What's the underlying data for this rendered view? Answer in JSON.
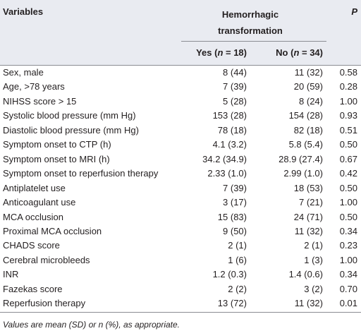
{
  "table": {
    "header": {
      "variables": "Variables",
      "group": "Hemorrhagic transformation",
      "yes": {
        "prefix": "Yes (",
        "italic": "n",
        "suffix": " = 18)"
      },
      "no": {
        "prefix": "No (",
        "italic": "n",
        "suffix": " = 34)"
      },
      "p": "P"
    },
    "rows": [
      [
        "Sex, male",
        "8 (44)",
        "11 (32)",
        "0.58"
      ],
      [
        "Age, >78 years",
        "7 (39)",
        "20 (59)",
        "0.28"
      ],
      [
        "NIHSS score > 15",
        "5 (28)",
        "8 (24)",
        "1.00"
      ],
      [
        "Systolic blood pressure (mm Hg)",
        "153 (28)",
        "154 (28)",
        "0.93"
      ],
      [
        "Diastolic blood pressure (mm Hg)",
        "78 (18)",
        "82 (18)",
        "0.51"
      ],
      [
        "Symptom onset to CTP (h)",
        "4.1 (3.2)",
        "5.8 (5.4)",
        "0.50"
      ],
      [
        "Symptom onset to MRI (h)",
        "34.2 (34.9)",
        "28.9 (27.4)",
        "0.67"
      ],
      [
        "Symptom onset to reperfusion therapy",
        "2.33 (1.0)",
        "2.99 (1.0)",
        "0.42"
      ],
      [
        "Antiplatelet use",
        "7 (39)",
        "18 (53)",
        "0.50"
      ],
      [
        "Anticoagulant use",
        "3 (17)",
        "7 (21)",
        "1.00"
      ],
      [
        "MCA occlusion",
        "15 (83)",
        "24 (71)",
        "0.50"
      ],
      [
        "Proximal MCA occlusion",
        "9 (50)",
        "11 (32)",
        "0.34"
      ],
      [
        "CHADS score",
        "2 (1)",
        "2 (1)",
        "0.23"
      ],
      [
        "Cerebral microbleeds",
        "1 (6)",
        "1 (3)",
        "1.00"
      ],
      [
        "INR",
        "1.2 (0.3)",
        "1.4 (0.6)",
        "0.34"
      ],
      [
        "Fazekas score",
        "2 (2)",
        "3 (2)",
        "0.70"
      ],
      [
        "Reperfusion therapy",
        "13 (72)",
        "11 (32)",
        "0.01"
      ]
    ],
    "footnote": "Values are mean (SD) or n (%), as appropriate."
  }
}
